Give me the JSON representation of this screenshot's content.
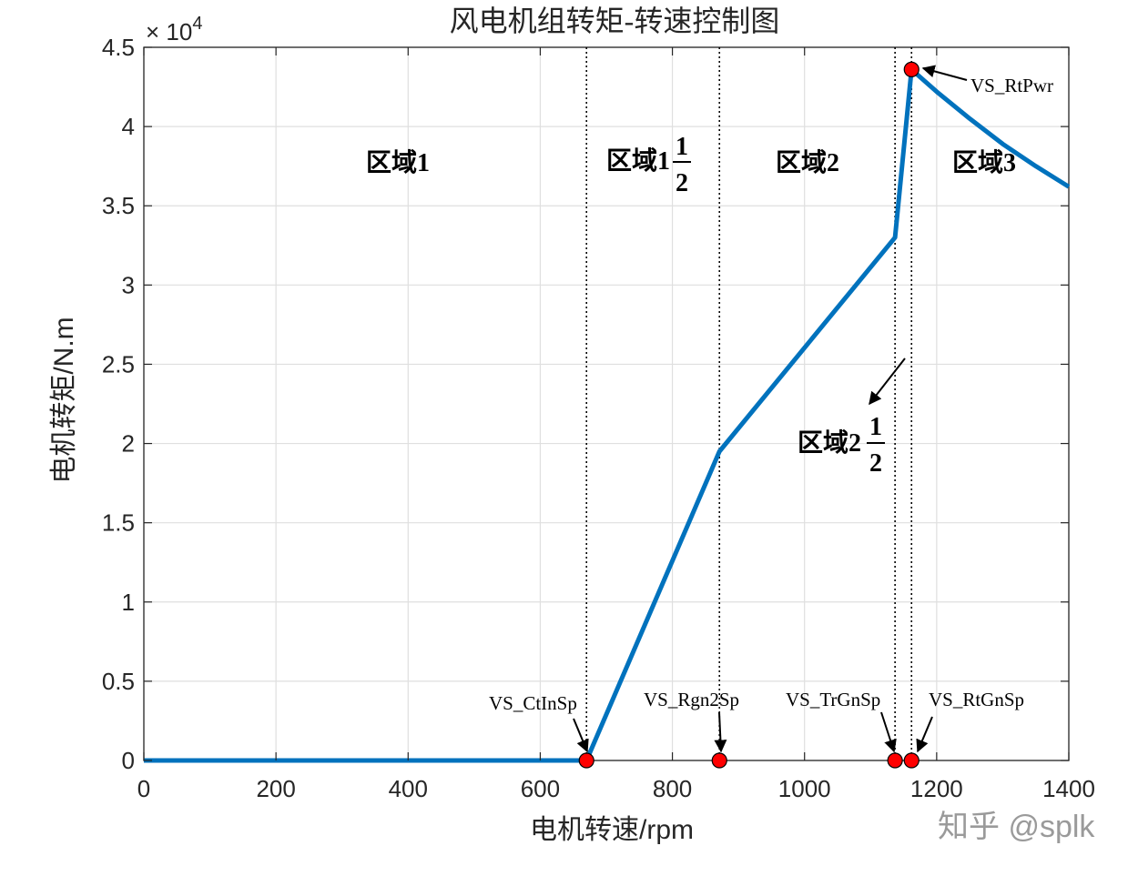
{
  "chart_data": {
    "type": "line",
    "title": "风电机组转矩-转速控制图",
    "xlabel": "电机转速/rpm",
    "ylabel": "电机转矩/N.m",
    "xlim": [
      0,
      1400
    ],
    "ylim": [
      0,
      45000
    ],
    "y_exponent_label": "× 10",
    "y_exponent_power": "4",
    "xticks": [
      0,
      200,
      400,
      600,
      800,
      1000,
      1200,
      1400
    ],
    "xtick_labels": [
      "0",
      "200",
      "400",
      "600",
      "800",
      "1000",
      "1200",
      "1400"
    ],
    "yticks": [
      0,
      5000,
      10000,
      15000,
      20000,
      25000,
      30000,
      35000,
      40000,
      45000
    ],
    "ytick_labels": [
      "0",
      "0.5",
      "1",
      "1.5",
      "2",
      "2.5",
      "3",
      "3.5",
      "4",
      "4.5"
    ],
    "grid": true,
    "series": [
      {
        "name": "torque",
        "color": "#0072BD",
        "x": [
          0,
          670,
          871.2,
          1137,
          1161.96,
          1200,
          1250,
          1300,
          1350,
          1400
        ],
        "y": [
          0,
          0,
          19500,
          33000,
          43600,
          42200,
          40500,
          38900,
          37500,
          36200
        ]
      }
    ],
    "vertical_lines": [
      670,
      871.2,
      1137,
      1161.96
    ],
    "markers": [
      {
        "name": "VS_CtInSp",
        "x": 670,
        "y": 0
      },
      {
        "name": "VS_Rgn2Sp",
        "x": 871.2,
        "y": 0
      },
      {
        "name": "VS_TrGnSp",
        "x": 1137,
        "y": 0
      },
      {
        "name": "VS_RtGnSp",
        "x": 1161.96,
        "y": 0
      },
      {
        "name": "VS_RtPwr",
        "x": 1161.96,
        "y": 43600
      }
    ],
    "regions": [
      {
        "label": "区域1",
        "fraction": ""
      },
      {
        "label": "区域1",
        "fraction": "1/2",
        "numerator": "1",
        "denominator": "2"
      },
      {
        "label": "区域2",
        "fraction": ""
      },
      {
        "label": "区域2",
        "fraction": "1/2",
        "numerator": "1",
        "denominator": "2"
      },
      {
        "label": "区域3",
        "fraction": ""
      }
    ],
    "marker_color": "#ff0000",
    "line_color": "#0072BD"
  },
  "watermark": "知乎 @splk"
}
